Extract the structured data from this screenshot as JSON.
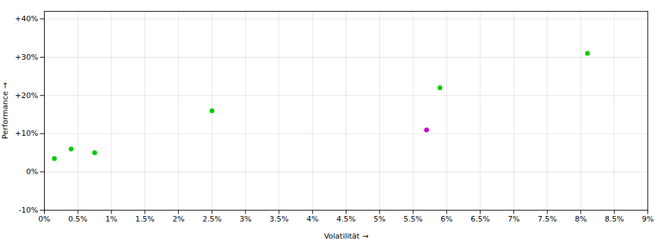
{
  "chart_data": {
    "type": "scatter",
    "x": [
      0.0015,
      0.004,
      0.0075,
      0.025,
      0.057,
      0.059,
      0.081
    ],
    "values": [
      0.035,
      0.06,
      0.05,
      0.16,
      0.11,
      0.22,
      0.31
    ],
    "colors": [
      "#00cc00",
      "#00cc00",
      "#00cc00",
      "#00cc00",
      "#cc00cc",
      "#00cc00",
      "#00cc00"
    ],
    "xlabel": "Volatilität",
    "ylabel": "Performance",
    "xlim": [
      0.0,
      0.09
    ],
    "ylim": [
      -0.1,
      0.42
    ],
    "xticks": [
      {
        "value": 0.0,
        "label": "0%"
      },
      {
        "value": 0.005,
        "label": "0.5%"
      },
      {
        "value": 0.01,
        "label": "1%"
      },
      {
        "value": 0.015,
        "label": "1.5%"
      },
      {
        "value": 0.02,
        "label": "2%"
      },
      {
        "value": 0.025,
        "label": "2.5%"
      },
      {
        "value": 0.03,
        "label": "3%"
      },
      {
        "value": 0.035,
        "label": "3.5%"
      },
      {
        "value": 0.04,
        "label": "4%"
      },
      {
        "value": 0.045,
        "label": "4.5%"
      },
      {
        "value": 0.05,
        "label": "5%"
      },
      {
        "value": 0.055,
        "label": "5.5%"
      },
      {
        "value": 0.06,
        "label": "6%"
      },
      {
        "value": 0.065,
        "label": "6.5%"
      },
      {
        "value": 0.07,
        "label": "7%"
      },
      {
        "value": 0.075,
        "label": "7.5%"
      },
      {
        "value": 0.08,
        "label": "8%"
      },
      {
        "value": 0.085,
        "label": "8.5%"
      },
      {
        "value": 0.09,
        "label": "9%"
      }
    ],
    "yticks": [
      {
        "value": -0.1,
        "label": "-10%"
      },
      {
        "value": 0.0,
        "label": "0%"
      },
      {
        "value": 0.1,
        "label": "+10%"
      },
      {
        "value": 0.2,
        "label": "+20%"
      },
      {
        "value": 0.3,
        "label": "+30%"
      },
      {
        "value": 0.4,
        "label": "+40%"
      }
    ],
    "grid": true
  }
}
